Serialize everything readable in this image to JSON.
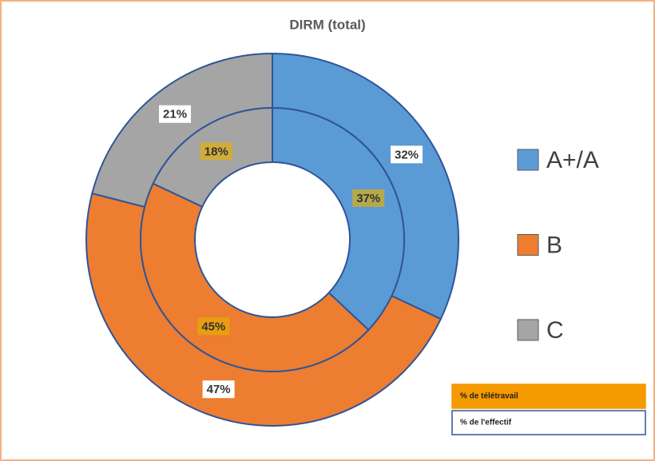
{
  "chart_data": {
    "type": "donut",
    "title": "DIRM (total)",
    "categories": [
      "A+/A",
      "B",
      "C"
    ],
    "colors": [
      "#5b9bd5",
      "#ed7d31",
      "#a5a5a5"
    ],
    "series": [
      {
        "name": "% de l'effectif",
        "ring": "outer",
        "values": [
          32,
          47,
          21
        ],
        "value_labels": [
          "32%",
          "47%",
          "21%"
        ]
      },
      {
        "name": "% de télétravail",
        "ring": "inner",
        "values": [
          37,
          45,
          18
        ],
        "value_labels": [
          "37%",
          "45%",
          "18%"
        ]
      }
    ]
  }
}
